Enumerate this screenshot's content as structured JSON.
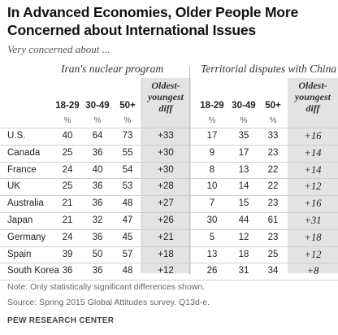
{
  "chart_data": {
    "type": "table",
    "title": "In Advanced Economies, Older People More Concerned about International Issues",
    "subtitle": "Very concerned about ...",
    "groups": [
      {
        "name": "Iran's nuclear program",
        "columns": [
          "18-29",
          "30-49",
          "50+"
        ],
        "unit": "%",
        "diff_label": "Oldest-youngest diff",
        "rows": [
          {
            "country": "U.S.",
            "values": [
              40,
              64,
              73
            ],
            "diff": "+33"
          },
          {
            "country": "Canada",
            "values": [
              25,
              36,
              55
            ],
            "diff": "+30"
          },
          {
            "country": "France",
            "values": [
              24,
              40,
              54
            ],
            "diff": "+30"
          },
          {
            "country": "UK",
            "values": [
              25,
              36,
              53
            ],
            "diff": "+28"
          },
          {
            "country": "Australia",
            "values": [
              21,
              36,
              48
            ],
            "diff": "+27"
          },
          {
            "country": "Japan",
            "values": [
              21,
              32,
              47
            ],
            "diff": "+26"
          },
          {
            "country": "Germany",
            "values": [
              24,
              36,
              45
            ],
            "diff": "+21"
          },
          {
            "country": "Spain",
            "values": [
              39,
              50,
              57
            ],
            "diff": "+18"
          },
          {
            "country": "South Korea",
            "values": [
              36,
              36,
              48
            ],
            "diff": "+12"
          }
        ]
      },
      {
        "name": "Territorial disputes with China",
        "columns": [
          "18-29",
          "30-49",
          "50+"
        ],
        "unit": "%",
        "diff_label": "Oldest-youngest diff",
        "rows": [
          {
            "country": "U.S.",
            "values": [
              17,
              35,
              33
            ],
            "diff": "+16"
          },
          {
            "country": "Canada",
            "values": [
              9,
              17,
              23
            ],
            "diff": "+14"
          },
          {
            "country": "France",
            "values": [
              8,
              13,
              22
            ],
            "diff": "+14"
          },
          {
            "country": "UK",
            "values": [
              10,
              14,
              22
            ],
            "diff": "+12"
          },
          {
            "country": "Australia",
            "values": [
              7,
              15,
              23
            ],
            "diff": "+16"
          },
          {
            "country": "Japan",
            "values": [
              30,
              44,
              61
            ],
            "diff": "+31"
          },
          {
            "country": "Germany",
            "values": [
              5,
              12,
              23
            ],
            "diff": "+18"
          },
          {
            "country": "Spain",
            "values": [
              13,
              18,
              25
            ],
            "diff": "+12"
          },
          {
            "country": "South Korea",
            "values": [
              26,
              31,
              34
            ],
            "diff": "+8"
          }
        ]
      }
    ],
    "note": "Note: Only statistically significant differences shown.",
    "source": "Source: Spring 2015 Global Attitudes survey. Q13d-e.",
    "footer": "PEW RESEARCH CENTER"
  }
}
